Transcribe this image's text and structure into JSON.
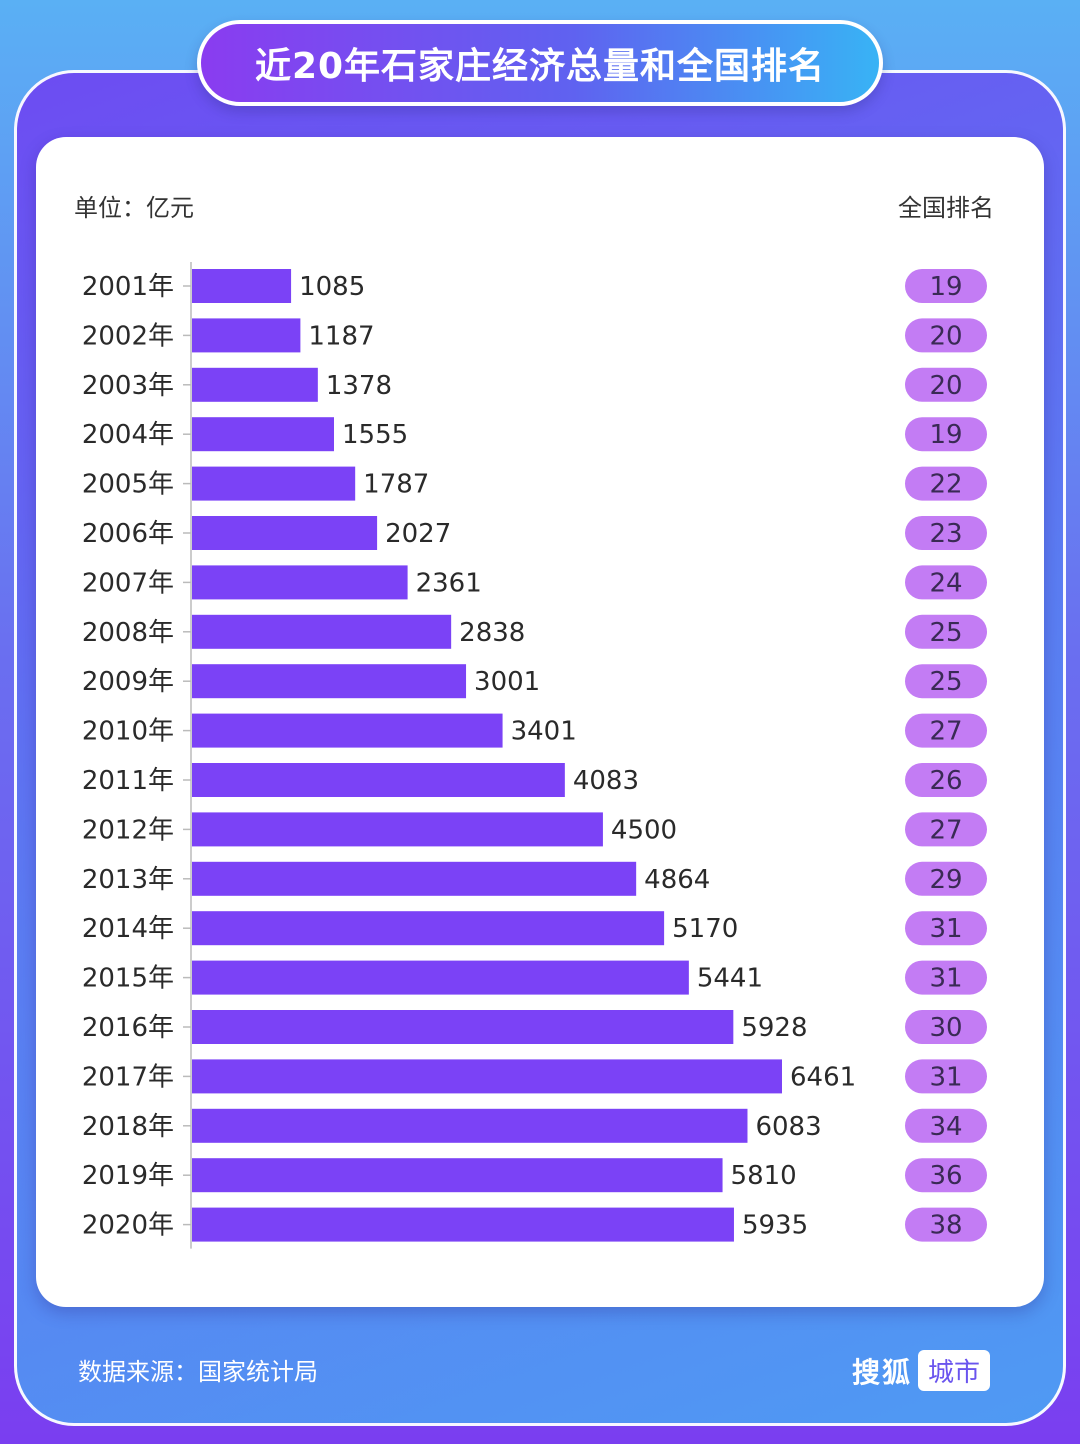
{
  "title": "近20年石家庄经济总量和全国排名",
  "unit_label": "单位：亿元",
  "rank_header": "全国排名",
  "footer": {
    "source": "数据来源：国家统计局",
    "brand_name": "搜狐",
    "brand_tag": "城市"
  },
  "colors": {
    "bar": "#7b42f6",
    "rank_pill": "#c37cf4",
    "axis": "#bbbbbb"
  },
  "chart_data": {
    "type": "bar",
    "orientation": "horizontal",
    "categories": [
      "2001年",
      "2002年",
      "2003年",
      "2004年",
      "2005年",
      "2006年",
      "2007年",
      "2008年",
      "2009年",
      "2010年",
      "2011年",
      "2012年",
      "2013年",
      "2014年",
      "2015年",
      "2016年",
      "2017年",
      "2018年",
      "2019年",
      "2020年"
    ],
    "series": [
      {
        "values": [
          1085,
          1187,
          1378,
          1555,
          1787,
          2027,
          2361,
          2838,
          3001,
          3401,
          4083,
          4500,
          4864,
          5170,
          5441,
          5928,
          6461,
          6083,
          5810,
          5935
        ]
      }
    ],
    "ranks": [
      19,
      20,
      20,
      19,
      22,
      23,
      24,
      25,
      25,
      27,
      26,
      27,
      29,
      31,
      31,
      30,
      31,
      34,
      36,
      38
    ],
    "value_labels": true,
    "grid": false,
    "legend": "none"
  }
}
